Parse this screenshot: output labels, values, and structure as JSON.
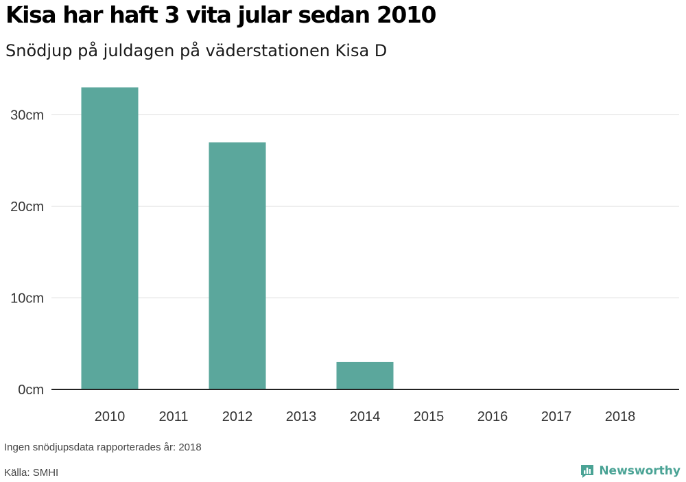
{
  "header": {
    "title": "Kisa har haft 3 vita jular sedan 2010",
    "subtitle": "Snödjup på juldagen på väderstationen Kisa D"
  },
  "chart_data": {
    "type": "bar",
    "categories": [
      "2010",
      "2011",
      "2012",
      "2013",
      "2014",
      "2015",
      "2016",
      "2017",
      "2018"
    ],
    "values": [
      33,
      0,
      27,
      0,
      3,
      0,
      0,
      0,
      0
    ],
    "unit": "cm",
    "yticks": [
      0,
      10,
      20,
      30
    ],
    "ytick_labels": [
      "0cm",
      "10cm",
      "20cm",
      "30cm"
    ],
    "ylim": [
      0,
      33
    ],
    "grid": true,
    "bar_color": "#5ba79c",
    "xlabel": "",
    "ylabel": ""
  },
  "footer": {
    "note": "Ingen snödjupsdata rapporterades år: 2018",
    "source": "Källa: SMHI",
    "brand": "Newsworthy",
    "brand_icon": "bar-chart-speech-bubble-icon",
    "brand_color": "#4aa395"
  }
}
